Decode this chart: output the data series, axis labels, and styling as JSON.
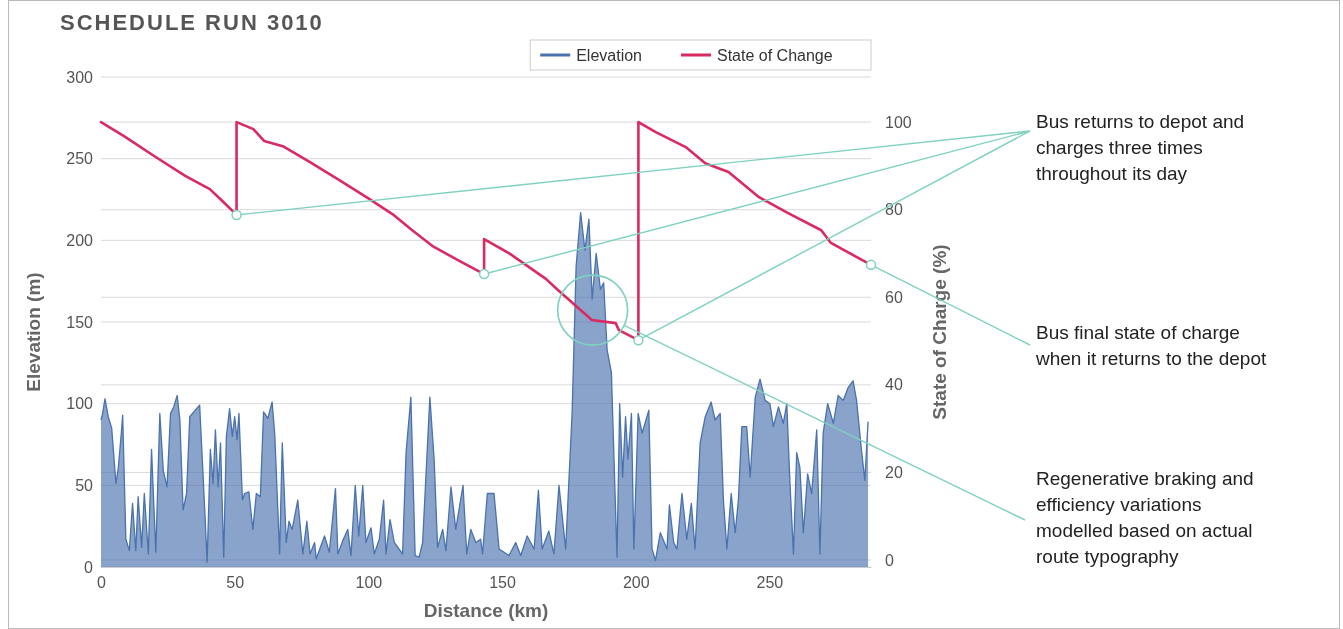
{
  "chart_data": {
    "type": "area",
    "title": "SCHEDULE RUN 3010",
    "xlabel": "Distance (km)",
    "ylabel": "Elevation (m)",
    "y2label": "State of Charge (%)",
    "xlim": [
      0,
      288
    ],
    "xticks": [
      0,
      50,
      100,
      150,
      200,
      250
    ],
    "ylim": [
      0,
      300
    ],
    "yticks": [
      0,
      50,
      100,
      150,
      200,
      250,
      300
    ],
    "y2lim": [
      -1.6,
      110.3
    ],
    "y2ticks": [
      0,
      20,
      40,
      60,
      80,
      100
    ],
    "grid": true,
    "legend": "top right",
    "series": [
      {
        "name": "Elevation",
        "color": "#4a72ad",
        "x": [
          0,
          0.6,
          1.5,
          2.7,
          4,
          5.6,
          6.5,
          7.7,
          8.1,
          9.3,
          10.6,
          11.8,
          13,
          13.9,
          15.2,
          16.2,
          17.7,
          18.9,
          20.5,
          22,
          23.3,
          24.7,
          26,
          27.2,
          28.5,
          29.5,
          30.7,
          32,
          33.2,
          34.7,
          36.9,
          38.8,
          39.7,
          40.9,
          41.9,
          42.8,
          43.8,
          44.7,
          45.9,
          46.9,
          48.1,
          49.1,
          50,
          50.9,
          51.6,
          52.9,
          53.7,
          55.3,
          56.8,
          58.1,
          59.6,
          60.8,
          62.4,
          64,
          65,
          66.8,
          67.8,
          69.3,
          70.3,
          71.5,
          73.6,
          75.5,
          77,
          78.2,
          79.9,
          80.5,
          83.6,
          85.4,
          87.7,
          88.6,
          90.4,
          92.3,
          93.5,
          95.1,
          96.4,
          97.9,
          99.1,
          101,
          102.2,
          104.1,
          105.7,
          106.6,
          108.1,
          109.7,
          112.8,
          114.1,
          115.9,
          117.5,
          119,
          120.3,
          123,
          124.6,
          125.9,
          127.8,
          129,
          130.9,
          132.7,
          135.4,
          136.8,
          138.3,
          140.2,
          142,
          142.7,
          144.5,
          147,
          148.9,
          152.6,
          155.1,
          157,
          159.4,
          162,
          163.6,
          165,
          167.5,
          169.4,
          171.3,
          173.8,
          176.2,
          177.7,
          179.4,
          181,
          182.5,
          183.7,
          185.2,
          186.8,
          188,
          189.3,
          190.9,
          193,
          194,
          195.1,
          196.2,
          197.1,
          198.4,
          199.3,
          200.9,
          202.4,
          204.9,
          206.1,
          207.4,
          209.2,
          211.7,
          212.6,
          214.2,
          215.4,
          217.3,
          219.1,
          220.8,
          222.2,
          224.1,
          226,
          228.2,
          229.7,
          231.6,
          232.8,
          234.1,
          235.7,
          237.2,
          238.4,
          239.7,
          241.5,
          242.8,
          244.7,
          246.5,
          248.4,
          250.2,
          251.5,
          253.4,
          255.2,
          256.5,
          257.7,
          259,
          260.2,
          261.4,
          262.7,
          264.3,
          265.8,
          267.7,
          268.9,
          270.1,
          271.8,
          273.9,
          275.7,
          277.6,
          279.5,
          281.3,
          282.6,
          284.4,
          285.7,
          286.9
        ],
        "values": [
          90,
          94,
          103,
          92,
          85,
          51,
          61,
          84,
          93,
          17,
          10,
          39,
          10,
          43,
          12,
          45,
          8,
          72,
          9,
          94,
          59,
          49,
          94,
          98,
          105,
          90,
          35,
          45,
          92,
          95,
          99,
          35,
          3,
          72,
          51,
          84,
          49,
          76,
          6,
          80,
          97,
          80,
          92,
          78,
          94,
          41,
          45,
          46,
          23,
          45,
          43,
          95,
          91,
          101,
          81,
          8,
          76,
          15,
          28,
          23,
          41,
          8,
          28,
          8,
          15,
          5,
          19,
          9,
          48,
          8,
          16,
          23,
          7,
          50,
          19,
          50,
          15,
          24,
          8,
          17,
          41,
          8,
          29,
          15,
          8,
          70,
          104,
          7,
          6,
          15,
          104,
          66,
          12,
          23,
          10,
          49,
          23,
          50,
          8,
          23,
          15,
          17,
          8,
          45,
          45,
          11,
          7,
          15,
          7,
          19,
          11,
          47,
          11,
          22,
          8,
          50,
          11,
          94,
          184,
          217,
          194,
          213,
          164,
          192,
          170,
          174,
          133,
          119,
          6,
          100,
          55,
          92,
          66,
          94,
          11,
          94,
          82,
          96,
          11,
          4,
          21,
          11,
          38,
          15,
          11,
          45,
          17,
          39,
          11,
          76,
          92,
          101,
          90,
          94,
          41,
          11,
          45,
          21,
          41,
          86,
          86,
          55,
          104,
          115,
          102,
          100,
          86,
          98,
          88,
          100,
          51,
          8,
          70,
          61,
          21,
          57,
          45,
          84,
          8,
          82,
          100,
          88,
          105,
          102,
          110,
          114,
          102,
          72,
          53,
          89
        ]
      },
      {
        "name": "State of Change",
        "type": "line",
        "axis": "y2",
        "color": "#d92a62",
        "x": [
          0,
          8.6,
          20,
          31.5,
          40.7,
          45,
          50.7,
          50.7,
          57,
          61,
          68,
          78,
          89,
          100,
          109,
          116.4,
          124,
          134,
          143.3,
          143.3,
          153,
          166.4,
          171,
          183.6,
          192.5,
          193.7,
          201,
          201,
          207.5,
          218.7,
          226,
          234.7,
          246,
          257,
          269.4,
          273,
          288
        ],
        "values": [
          100,
          96.8,
          92.2,
          87.7,
          84.7,
          82.2,
          78.8,
          100,
          98.4,
          95.7,
          94.5,
          90.9,
          86.8,
          82.6,
          79,
          75.3,
          71.7,
          68.3,
          65.3,
          73.3,
          69.9,
          64.2,
          61.6,
          54.8,
          54.1,
          52.5,
          50.2,
          100,
          97.7,
          94.3,
          90.6,
          88.6,
          82.9,
          79.2,
          75.3,
          72.4,
          67.4
        ]
      },
      {
        "type": "scatter",
        "axis": "y2",
        "color": "#7fd1c0",
        "x": [
          50.7,
          143.3,
          201,
          288
        ],
        "values": [
          78.8,
          65.3,
          50.2,
          67.4
        ]
      }
    ],
    "annotations": [
      "Bus returns to depot and charges three times throughout its day",
      "Bus final state of charge when it returns to the depot",
      "Regenerative braking and efficiency variations modelled based on actual route typography"
    ]
  }
}
